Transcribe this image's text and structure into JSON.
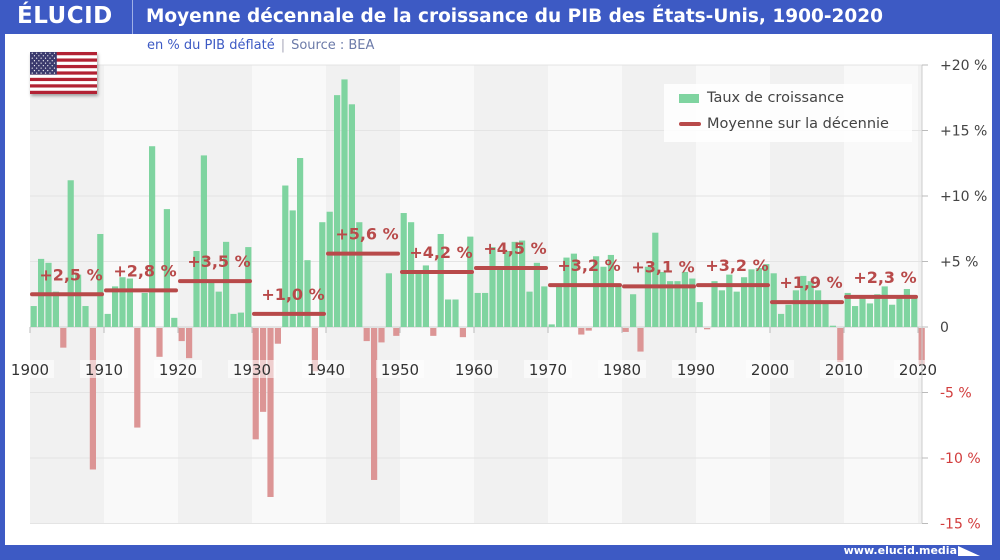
{
  "header": {
    "logo": "ÉLUCID",
    "title": "Moyenne décennale de la croissance du PIB des États-Unis, 1900-2020",
    "subtitle_unit": "en % du PIB déflaté",
    "subtitle_source": "Source : BEA"
  },
  "footer": {
    "url": "www.elucid.media"
  },
  "flag": {
    "country": "États-Unis",
    "icon": "us-flag-icon"
  },
  "legend": {
    "bars": "Taux de croissance",
    "line": "Moyenne sur la décennie"
  },
  "colors": {
    "brand": "#3d5ac4",
    "positive_bar": "#7fd4a0",
    "negative_bar": "#dc9595",
    "average_line": "#b84a4a",
    "negative_tick": "#d23c3c"
  },
  "chart_data": {
    "type": "bar",
    "title": "Moyenne décennale de la croissance du PIB des États-Unis, 1900-2020",
    "subtitle": "en % du PIB déflaté | Source : BEA",
    "xlabel": "",
    "ylabel": "",
    "ylim": [
      -15,
      20
    ],
    "yticks": [
      {
        "value": 20,
        "label": "+20 %"
      },
      {
        "value": 15,
        "label": "+15 %"
      },
      {
        "value": 10,
        "label": "+10 %"
      },
      {
        "value": 5,
        "label": "+5 %"
      },
      {
        "value": 0,
        "label": "0"
      },
      {
        "value": -5,
        "label": "-5 %"
      },
      {
        "value": -10,
        "label": "-10 %"
      },
      {
        "value": -15,
        "label": "-15 %"
      }
    ],
    "xticks": [
      "1900",
      "1910",
      "1920",
      "1930",
      "1940",
      "1950",
      "1960",
      "1970",
      "1980",
      "1990",
      "2000",
      "2010",
      "2020"
    ],
    "grid": true,
    "legend_position": "top-right",
    "series": [
      {
        "name": "Taux de croissance",
        "type": "bar",
        "x_start": 1900,
        "values": [
          1.6,
          5.2,
          4.9,
          2.7,
          -1.5,
          11.2,
          4.0,
          1.6,
          -10.8,
          7.1,
          1.0,
          3.1,
          3.8,
          3.7,
          -7.6,
          2.6,
          13.8,
          -2.2,
          9.0,
          0.7,
          -1.0,
          -2.3,
          5.8,
          13.1,
          3.6,
          2.7,
          6.5,
          1.0,
          1.1,
          6.1,
          -8.5,
          -6.4,
          -12.9,
          -1.2,
          10.8,
          8.9,
          12.9,
          5.1,
          -3.3,
          8.0,
          8.8,
          17.7,
          18.9,
          17.0,
          8.0,
          -1.0,
          -11.6,
          -1.1,
          4.1,
          -0.6,
          8.7,
          8.0,
          4.1,
          4.7,
          -0.6,
          7.1,
          2.1,
          2.1,
          -0.7,
          6.9,
          2.6,
          2.6,
          6.1,
          4.4,
          5.8,
          6.5,
          6.6,
          2.7,
          4.9,
          3.1,
          0.2,
          3.3,
          5.3,
          5.6,
          -0.5,
          -0.2,
          5.4,
          4.6,
          5.5,
          3.2,
          -0.3,
          2.5,
          -1.8,
          4.6,
          7.2,
          4.2,
          3.5,
          3.5,
          4.2,
          3.7,
          1.9,
          -0.1,
          3.5,
          2.8,
          4.0,
          2.7,
          3.8,
          4.4,
          4.5,
          4.8,
          4.1,
          1.0,
          1.7,
          2.8,
          3.9,
          3.5,
          2.8,
          2.0,
          0.1,
          -2.6,
          2.6,
          1.6,
          2.3,
          1.8,
          2.5,
          3.1,
          1.7,
          2.3,
          2.9,
          2.3,
          -2.8
        ]
      },
      {
        "name": "Moyenne sur la décennie",
        "type": "line",
        "decades": [
          {
            "start": 1900,
            "end": 1910,
            "value": 2.5,
            "label": "+2,5 %"
          },
          {
            "start": 1910,
            "end": 1920,
            "value": 2.8,
            "label": "+2,8 %"
          },
          {
            "start": 1920,
            "end": 1930,
            "value": 3.5,
            "label": "+3,5 %"
          },
          {
            "start": 1930,
            "end": 1940,
            "value": 1.0,
            "label": "+1,0 %"
          },
          {
            "start": 1940,
            "end": 1950,
            "value": 5.6,
            "label": "+5,6 %"
          },
          {
            "start": 1950,
            "end": 1960,
            "value": 4.2,
            "label": "+4,2 %"
          },
          {
            "start": 1960,
            "end": 1970,
            "value": 4.5,
            "label": "+4,5 %"
          },
          {
            "start": 1970,
            "end": 1980,
            "value": 3.2,
            "label": "+3,2 %"
          },
          {
            "start": 1980,
            "end": 1990,
            "value": 3.1,
            "label": "+3,1 %"
          },
          {
            "start": 1990,
            "end": 2000,
            "value": 3.2,
            "label": "+3,2 %"
          },
          {
            "start": 2000,
            "end": 2010,
            "value": 1.9,
            "label": "+1,9 %"
          },
          {
            "start": 2010,
            "end": 2020,
            "value": 2.3,
            "label": "+2,3 %"
          }
        ]
      }
    ]
  }
}
